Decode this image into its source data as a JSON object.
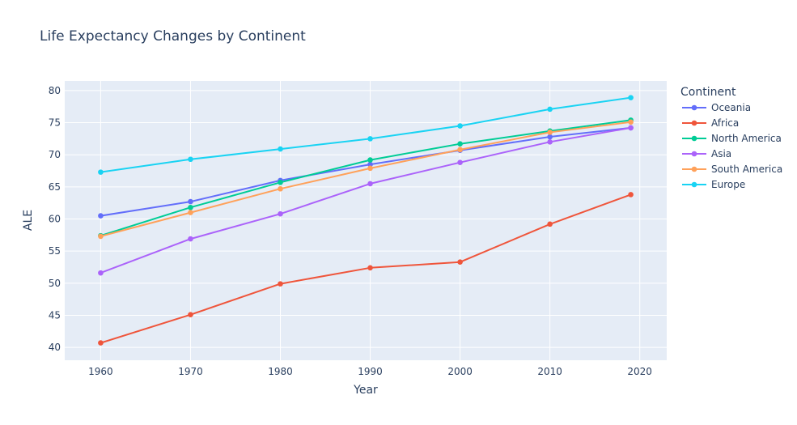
{
  "chart_data": {
    "type": "line",
    "title": "Life Expectancy Changes by Continent",
    "xlabel": "Year",
    "ylabel": "ALE",
    "xlim": [
      1956,
      2023
    ],
    "ylim": [
      38,
      81.5
    ],
    "x_ticks": [
      1960,
      1970,
      1980,
      1990,
      2000,
      2010,
      2020
    ],
    "y_ticks": [
      40,
      45,
      50,
      55,
      60,
      65,
      70,
      75,
      80
    ],
    "grid": true,
    "legend_title": "Continent",
    "legend_position": "right",
    "x": [
      1960,
      1970,
      1980,
      1990,
      2000,
      2010,
      2019
    ],
    "series": [
      {
        "name": "Oceania",
        "color": "#636efa",
        "values": [
          60.5,
          62.7,
          66.0,
          68.5,
          70.7,
          72.8,
          74.2
        ]
      },
      {
        "name": "Africa",
        "color": "#ef553b",
        "values": [
          40.7,
          45.1,
          49.9,
          52.4,
          53.3,
          59.2,
          63.8
        ]
      },
      {
        "name": "North America",
        "color": "#00cc96",
        "values": [
          57.4,
          61.8,
          65.7,
          69.2,
          71.7,
          73.7,
          75.4
        ]
      },
      {
        "name": "Asia",
        "color": "#ab63fa",
        "values": [
          51.6,
          56.9,
          60.8,
          65.5,
          68.8,
          72.0,
          74.2
        ]
      },
      {
        "name": "South America",
        "color": "#ffa15a",
        "values": [
          57.3,
          61.0,
          64.7,
          67.9,
          70.8,
          73.5,
          75.1
        ]
      },
      {
        "name": "Europe",
        "color": "#19d3f3",
        "values": [
          67.3,
          69.3,
          70.9,
          72.5,
          74.5,
          77.1,
          78.9
        ]
      }
    ]
  }
}
